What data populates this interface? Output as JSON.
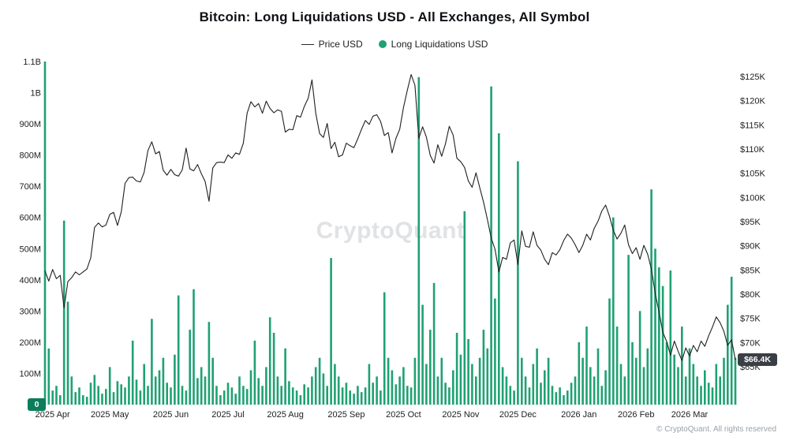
{
  "page": {
    "title": "Bitcoin: Long Liquidations USD - All Exchanges, All Symbol"
  },
  "legend": {
    "price": "Price USD",
    "liquidations": "Long Liquidations USD"
  },
  "watermark": "CryptoQuant",
  "footer": "© CryptoQuant. All rights reserved",
  "colors": {
    "bar": "#1fa173",
    "line": "#1d1f23",
    "zero_badge_bg": "#0c7d5b",
    "price_badge_bg": "#3a3f45",
    "watermark": "#e0e2e4"
  },
  "chart_data": {
    "type": "bar+line",
    "title": "Bitcoin: Long Liquidations USD - All Exchanges, All Symbol",
    "x_description": "Time series from late Mar 2025 to late Mar 2026, points ~2 days apart, evenly spaced",
    "legend_position": "top-center",
    "grid": "off",
    "left_axis": {
      "label": "Long Liquidations USD",
      "unit": "USD millions",
      "max": 1100,
      "zero_badge": "0",
      "ticks": [
        {
          "value": 0,
          "label": "0"
        },
        {
          "value": 100,
          "label": "100M"
        },
        {
          "value": 200,
          "label": "200M"
        },
        {
          "value": 300,
          "label": "300M"
        },
        {
          "value": 400,
          "label": "400M"
        },
        {
          "value": 500,
          "label": "500M"
        },
        {
          "value": 600,
          "label": "600M"
        },
        {
          "value": 700,
          "label": "700M"
        },
        {
          "value": 800,
          "label": "800M"
        },
        {
          "value": 900,
          "label": "900M"
        },
        {
          "value": 1000,
          "label": "1B"
        },
        {
          "value": 1100,
          "label": "1.1B"
        }
      ]
    },
    "right_axis": {
      "label": "Price USD",
      "unit": "USD",
      "current_label": "$66.4K",
      "current_value": 66400,
      "ticks": [
        {
          "value": 65000,
          "label": "$65K"
        },
        {
          "value": 70000,
          "label": "$70K"
        },
        {
          "value": 75000,
          "label": "$75K"
        },
        {
          "value": 80000,
          "label": "$80K"
        },
        {
          "value": 85000,
          "label": "$85K"
        },
        {
          "value": 90000,
          "label": "$90K"
        },
        {
          "value": 95000,
          "label": "$95K"
        },
        {
          "value": 100000,
          "label": "$100K"
        },
        {
          "value": 105000,
          "label": "$105K"
        },
        {
          "value": 110000,
          "label": "$110K"
        },
        {
          "value": 115000,
          "label": "$115K"
        },
        {
          "value": 120000,
          "label": "$120K"
        },
        {
          "value": 125000,
          "label": "$125K"
        }
      ]
    },
    "x_ticks": [
      {
        "index": 2,
        "label": "2025 Apr"
      },
      {
        "index": 17,
        "label": "2025 May"
      },
      {
        "index": 33,
        "label": "2025 Jun"
      },
      {
        "index": 48,
        "label": "2025 Jul"
      },
      {
        "index": 63,
        "label": "2025 Aug"
      },
      {
        "index": 79,
        "label": "2025 Sep"
      },
      {
        "index": 94,
        "label": "2025 Oct"
      },
      {
        "index": 109,
        "label": "2025 Nov"
      },
      {
        "index": 124,
        "label": "2025 Dec"
      },
      {
        "index": 140,
        "label": "2026 Jan"
      },
      {
        "index": 155,
        "label": "2026 Feb"
      },
      {
        "index": 169,
        "label": "2026 Mar"
      }
    ],
    "series": [
      {
        "name": "Price USD",
        "type": "line",
        "axis": "right",
        "values": [
          84800,
          82700,
          85100,
          83200,
          83900,
          77200,
          82600,
          83400,
          84600,
          84000,
          84600,
          85200,
          87500,
          93800,
          94700,
          93900,
          94300,
          96500,
          96900,
          94200,
          97000,
          102900,
          104100,
          104200,
          103400,
          103200,
          105200,
          109700,
          111500,
          109000,
          109500,
          105600,
          104600,
          105800,
          104700,
          104400,
          105700,
          110200,
          105900,
          105500,
          106800,
          104900,
          103300,
          99200,
          106100,
          107200,
          107300,
          107200,
          108800,
          108100,
          109200,
          108900,
          111200,
          117400,
          119800,
          118700,
          119400,
          117400,
          119900,
          118400,
          117500,
          118100,
          117800,
          113500,
          114100,
          114000,
          116900,
          116600,
          118800,
          120500,
          124300,
          117400,
          113200,
          112400,
          115300,
          110100,
          111400,
          108400,
          108800,
          111200,
          110700,
          110300,
          112100,
          114100,
          115900,
          115100,
          116800,
          117100,
          115700,
          112800,
          113400,
          109200,
          112200,
          114100,
          118600,
          122200,
          125400,
          123200,
          112200,
          114600,
          112500,
          108700,
          107100,
          110900,
          108500,
          111100,
          114700,
          112900,
          108100,
          107400,
          106200,
          103400,
          102100,
          105100,
          102000,
          99000,
          95400,
          91600,
          89300,
          84600,
          87600,
          87200,
          90600,
          91200,
          86100,
          93100,
          89900,
          89700,
          92900,
          90100,
          89100,
          87200,
          86100,
          88600,
          88100,
          89200,
          91100,
          92400,
          91600,
          90200,
          88600,
          90100,
          92400,
          91200,
          93600,
          95100,
          97200,
          98400,
          96100,
          93200,
          91400,
          92600,
          94300,
          90200,
          88400,
          89600,
          87200,
          90100,
          88300,
          85200,
          80100,
          76300,
          72100,
          70200,
          67400,
          70300,
          68200,
          66300,
          68900,
          67200,
          69400,
          68100,
          70300,
          69200,
          71400,
          73200,
          75300,
          74100,
          72300,
          69400,
          70600,
          66400
        ]
      },
      {
        "name": "Long Liquidations USD",
        "type": "bar",
        "axis": "left",
        "unit": "USD millions",
        "values": [
          1100,
          180,
          45,
          60,
          30,
          590,
          330,
          90,
          40,
          55,
          30,
          25,
          70,
          95,
          60,
          35,
          50,
          120,
          40,
          75,
          65,
          55,
          90,
          205,
          80,
          45,
          130,
          60,
          275,
          90,
          110,
          150,
          70,
          55,
          160,
          350,
          60,
          45,
          240,
          370,
          85,
          120,
          90,
          265,
          150,
          60,
          30,
          45,
          70,
          55,
          35,
          90,
          60,
          50,
          110,
          205,
          85,
          60,
          120,
          280,
          230,
          90,
          60,
          180,
          75,
          55,
          45,
          30,
          65,
          55,
          90,
          120,
          150,
          100,
          60,
          470,
          130,
          90,
          55,
          70,
          45,
          35,
          60,
          40,
          55,
          130,
          70,
          90,
          45,
          360,
          150,
          110,
          65,
          90,
          120,
          60,
          55,
          150,
          1050,
          320,
          130,
          240,
          390,
          90,
          150,
          70,
          55,
          110,
          230,
          160,
          620,
          210,
          130,
          90,
          150,
          240,
          180,
          1020,
          340,
          870,
          120,
          90,
          60,
          45,
          780,
          150,
          90,
          55,
          130,
          180,
          70,
          110,
          150,
          60,
          40,
          55,
          30,
          45,
          70,
          90,
          200,
          150,
          250,
          120,
          90,
          180,
          60,
          110,
          340,
          600,
          250,
          130,
          90,
          480,
          200,
          150,
          300,
          120,
          180,
          690,
          500,
          440,
          380,
          200,
          430,
          160,
          120,
          250,
          90,
          180,
          130,
          90,
          60,
          110,
          70,
          55,
          130,
          90,
          150,
          320,
          410,
          150
        ]
      }
    ]
  }
}
